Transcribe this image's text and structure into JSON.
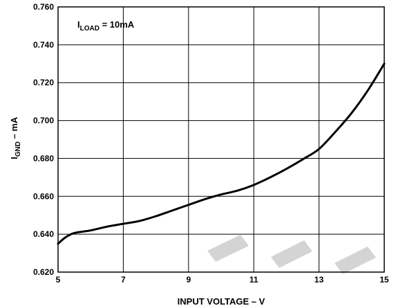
{
  "chart_data": {
    "type": "line",
    "xlabel": "INPUT VOLTAGE – V",
    "ylabel": {
      "main": "I",
      "sub": "GND",
      "suffix": " – mA"
    },
    "annotation": {
      "main": "I",
      "sub": "LOAD",
      "suffix": " = 10mA"
    },
    "xlim": [
      5,
      15
    ],
    "ylim": [
      0.62,
      0.76
    ],
    "x_ticks": [
      "5",
      "7",
      "9",
      "11",
      "13",
      "15"
    ],
    "y_ticks": [
      "0.620",
      "0.640",
      "0.660",
      "0.680",
      "0.700",
      "0.720",
      "0.740",
      "0.760"
    ],
    "grid": true,
    "series": [
      {
        "x": [
          5.0,
          5.2,
          5.4,
          5.6,
          6.0,
          6.5,
          7.0,
          7.5,
          8.0,
          8.5,
          9.0,
          9.5,
          10.0,
          10.5,
          11.0,
          11.5,
          12.0,
          12.5,
          13.0,
          13.5,
          14.0,
          14.5,
          15.0
        ],
        "y": [
          0.635,
          0.638,
          0.64,
          0.641,
          0.642,
          0.644,
          0.6455,
          0.647,
          0.6495,
          0.6525,
          0.6555,
          0.6585,
          0.661,
          0.663,
          0.666,
          0.67,
          0.6745,
          0.6795,
          0.685,
          0.694,
          0.704,
          0.716,
          0.73
        ]
      }
    ]
  }
}
